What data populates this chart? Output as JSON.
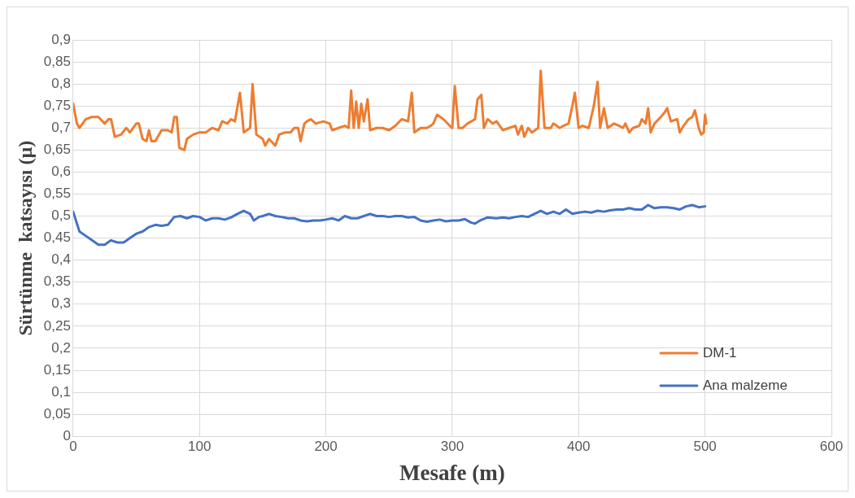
{
  "chart_data": {
    "type": "line",
    "xlabel": "Mesafe (m)",
    "ylabel": "Sürtünme  katsayısı (µ)",
    "xlim": [
      0,
      600
    ],
    "xticks": [
      0,
      100,
      200,
      300,
      400,
      500,
      600
    ],
    "ylim": [
      0,
      0.9
    ],
    "yticks": [
      0,
      {
        "value": 0.05,
        "label": "0,05"
      },
      {
        "value": 0.1,
        "label": "0,1"
      },
      {
        "value": 0.15,
        "label": "0,15"
      },
      {
        "value": 0.2,
        "label": "0,2"
      },
      {
        "value": 0.25,
        "label": "0,25"
      },
      {
        "value": 0.3,
        "label": "0,3"
      },
      {
        "value": 0.35,
        "label": "0,35"
      },
      {
        "value": 0.4,
        "label": "0,4"
      },
      {
        "value": 0.45,
        "label": "0,45"
      },
      {
        "value": 0.5,
        "label": "0,5"
      },
      {
        "value": 0.55,
        "label": "0,55"
      },
      {
        "value": 0.6,
        "label": "0,6"
      },
      {
        "value": 0.65,
        "label": "0,65"
      },
      {
        "value": 0.7,
        "label": "0,7"
      },
      {
        "value": 0.75,
        "label": "0,75"
      },
      {
        "value": 0.8,
        "label": "0,8"
      },
      {
        "value": 0.85,
        "label": "0,85"
      },
      {
        "value": 0.9,
        "label": "0,9"
      }
    ],
    "grid": true,
    "legend": "right",
    "marker": "none",
    "line_style": "solid",
    "series": [
      {
        "name": "DM-1",
        "color": "#ed7d31",
        "x": [
          0,
          3,
          5,
          10,
          15,
          20,
          25,
          28,
          30,
          33,
          38,
          42,
          45,
          50,
          52,
          55,
          58,
          60,
          62,
          65,
          70,
          75,
          78,
          80,
          82,
          84,
          88,
          90,
          95,
          100,
          105,
          110,
          115,
          118,
          122,
          125,
          128,
          132,
          135,
          140,
          142,
          145,
          150,
          152,
          155,
          160,
          163,
          168,
          172,
          175,
          178,
          180,
          183,
          185,
          188,
          192,
          198,
          203,
          205,
          210,
          215,
          218,
          220,
          222,
          224,
          226,
          228,
          230,
          233,
          235,
          240,
          245,
          250,
          255,
          260,
          265,
          268,
          270,
          275,
          280,
          283,
          285,
          288,
          293,
          298,
          300,
          302,
          305,
          308,
          312,
          318,
          320,
          323,
          325,
          328,
          332,
          335,
          340,
          345,
          350,
          352,
          355,
          357,
          360,
          363,
          368,
          370,
          373,
          378,
          380,
          385,
          388,
          392,
          395,
          397,
          400,
          403,
          408,
          412,
          415,
          417,
          420,
          423,
          428,
          432,
          435,
          437,
          440,
          443,
          448,
          450,
          453,
          455,
          457,
          460,
          465,
          468,
          470,
          473,
          478,
          480,
          483,
          487,
          490,
          492,
          495,
          497,
          499,
          500,
          501
        ],
        "values": [
          0.755,
          0.71,
          0.7,
          0.72,
          0.725,
          0.725,
          0.71,
          0.72,
          0.72,
          0.68,
          0.685,
          0.7,
          0.69,
          0.71,
          0.71,
          0.675,
          0.67,
          0.695,
          0.67,
          0.67,
          0.695,
          0.695,
          0.69,
          0.725,
          0.725,
          0.655,
          0.65,
          0.675,
          0.685,
          0.69,
          0.69,
          0.7,
          0.695,
          0.715,
          0.71,
          0.72,
          0.715,
          0.78,
          0.69,
          0.7,
          0.8,
          0.685,
          0.675,
          0.66,
          0.675,
          0.66,
          0.685,
          0.69,
          0.69,
          0.7,
          0.7,
          0.67,
          0.71,
          0.715,
          0.72,
          0.71,
          0.715,
          0.71,
          0.695,
          0.7,
          0.705,
          0.7,
          0.785,
          0.7,
          0.76,
          0.7,
          0.755,
          0.715,
          0.765,
          0.695,
          0.7,
          0.7,
          0.695,
          0.705,
          0.72,
          0.715,
          0.78,
          0.69,
          0.7,
          0.7,
          0.705,
          0.71,
          0.73,
          0.72,
          0.705,
          0.7,
          0.795,
          0.7,
          0.7,
          0.71,
          0.72,
          0.765,
          0.775,
          0.7,
          0.72,
          0.71,
          0.715,
          0.695,
          0.7,
          0.705,
          0.685,
          0.705,
          0.68,
          0.7,
          0.69,
          0.7,
          0.83,
          0.7,
          0.7,
          0.71,
          0.7,
          0.705,
          0.71,
          0.75,
          0.78,
          0.7,
          0.705,
          0.7,
          0.75,
          0.805,
          0.7,
          0.745,
          0.7,
          0.71,
          0.705,
          0.7,
          0.71,
          0.69,
          0.7,
          0.705,
          0.72,
          0.71,
          0.745,
          0.69,
          0.71,
          0.725,
          0.735,
          0.745,
          0.715,
          0.72,
          0.69,
          0.705,
          0.72,
          0.725,
          0.74,
          0.7,
          0.685,
          0.69,
          0.73,
          0.71
        ]
      },
      {
        "name": "Ana malzeme",
        "color": "#4472c4",
        "x": [
          0,
          5,
          10,
          15,
          20,
          25,
          30,
          35,
          40,
          45,
          50,
          55,
          60,
          65,
          70,
          75,
          80,
          85,
          90,
          95,
          100,
          105,
          110,
          115,
          120,
          125,
          130,
          135,
          140,
          143,
          147,
          150,
          155,
          160,
          165,
          170,
          175,
          180,
          185,
          190,
          195,
          200,
          205,
          210,
          215,
          220,
          225,
          230,
          235,
          240,
          245,
          250,
          255,
          260,
          265,
          270,
          275,
          280,
          285,
          290,
          295,
          300,
          305,
          310,
          315,
          318,
          322,
          328,
          335,
          340,
          345,
          350,
          355,
          360,
          365,
          370,
          375,
          380,
          385,
          390,
          395,
          400,
          405,
          410,
          415,
          420,
          425,
          430,
          435,
          440,
          445,
          450,
          455,
          460,
          465,
          470,
          475,
          480,
          485,
          490,
          495,
          500
        ],
        "values": [
          0.51,
          0.465,
          0.455,
          0.445,
          0.435,
          0.435,
          0.445,
          0.44,
          0.44,
          0.45,
          0.46,
          0.465,
          0.475,
          0.48,
          0.478,
          0.48,
          0.498,
          0.5,
          0.495,
          0.5,
          0.498,
          0.49,
          0.495,
          0.495,
          0.492,
          0.497,
          0.505,
          0.512,
          0.505,
          0.49,
          0.498,
          0.5,
          0.505,
          0.5,
          0.498,
          0.495,
          0.495,
          0.49,
          0.488,
          0.49,
          0.49,
          0.492,
          0.495,
          0.49,
          0.5,
          0.495,
          0.495,
          0.5,
          0.505,
          0.5,
          0.5,
          0.498,
          0.5,
          0.5,
          0.497,
          0.498,
          0.49,
          0.487,
          0.49,
          0.492,
          0.488,
          0.49,
          0.49,
          0.493,
          0.485,
          0.483,
          0.49,
          0.497,
          0.495,
          0.497,
          0.495,
          0.498,
          0.5,
          0.498,
          0.505,
          0.512,
          0.505,
          0.51,
          0.505,
          0.515,
          0.505,
          0.508,
          0.51,
          0.508,
          0.512,
          0.51,
          0.513,
          0.515,
          0.515,
          0.518,
          0.515,
          0.515,
          0.525,
          0.518,
          0.52,
          0.52,
          0.518,
          0.515,
          0.522,
          0.525,
          0.52,
          0.522
        ]
      }
    ]
  }
}
